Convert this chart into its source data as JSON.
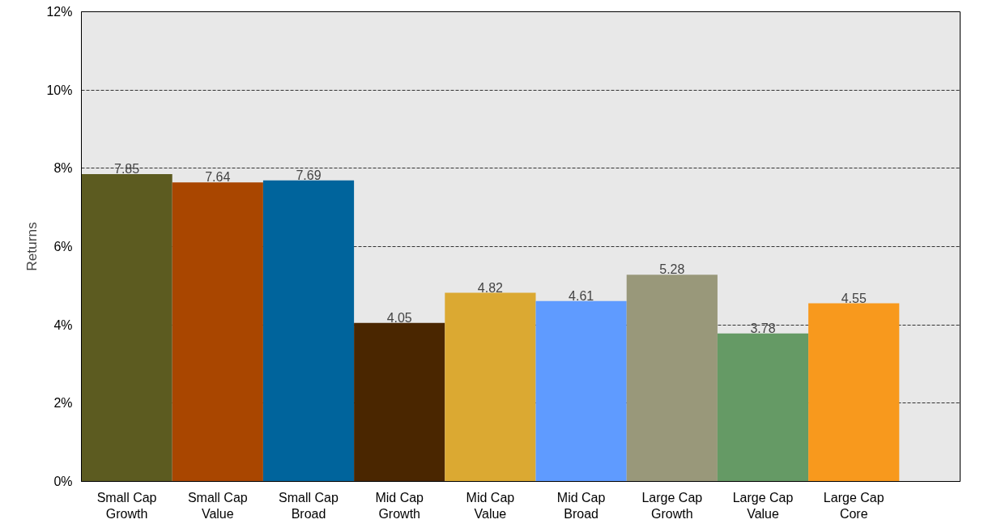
{
  "chart_data": {
    "type": "bar",
    "ylabel": "Returns",
    "categories": [
      "Small Cap Growth",
      "Small Cap Value",
      "Small Cap Broad",
      "Mid Cap Growth",
      "Mid Cap Value",
      "Mid Cap Broad",
      "Large Cap Growth",
      "Large Cap Value",
      "Large Cap Core"
    ],
    "values": [
      7.85,
      7.64,
      7.69,
      4.05,
      4.82,
      4.61,
      5.28,
      3.78,
      4.55
    ],
    "colors": [
      "#5c5b20",
      "#a94600",
      "#00649c",
      "#4a2600",
      "#dba932",
      "#5f9bff",
      "#99987a",
      "#659a65",
      "#f8991d"
    ],
    "ylim": [
      0,
      12
    ],
    "yticks": [
      {
        "value": 0,
        "label": "0%"
      },
      {
        "value": 2,
        "label": "2%"
      },
      {
        "value": 4,
        "label": "4%"
      },
      {
        "value": 6,
        "label": "6%"
      },
      {
        "value": 8,
        "label": "8%"
      },
      {
        "value": 10,
        "label": "10%"
      },
      {
        "value": 12,
        "label": "12%"
      }
    ],
    "grid": "y",
    "data_labels": true
  }
}
